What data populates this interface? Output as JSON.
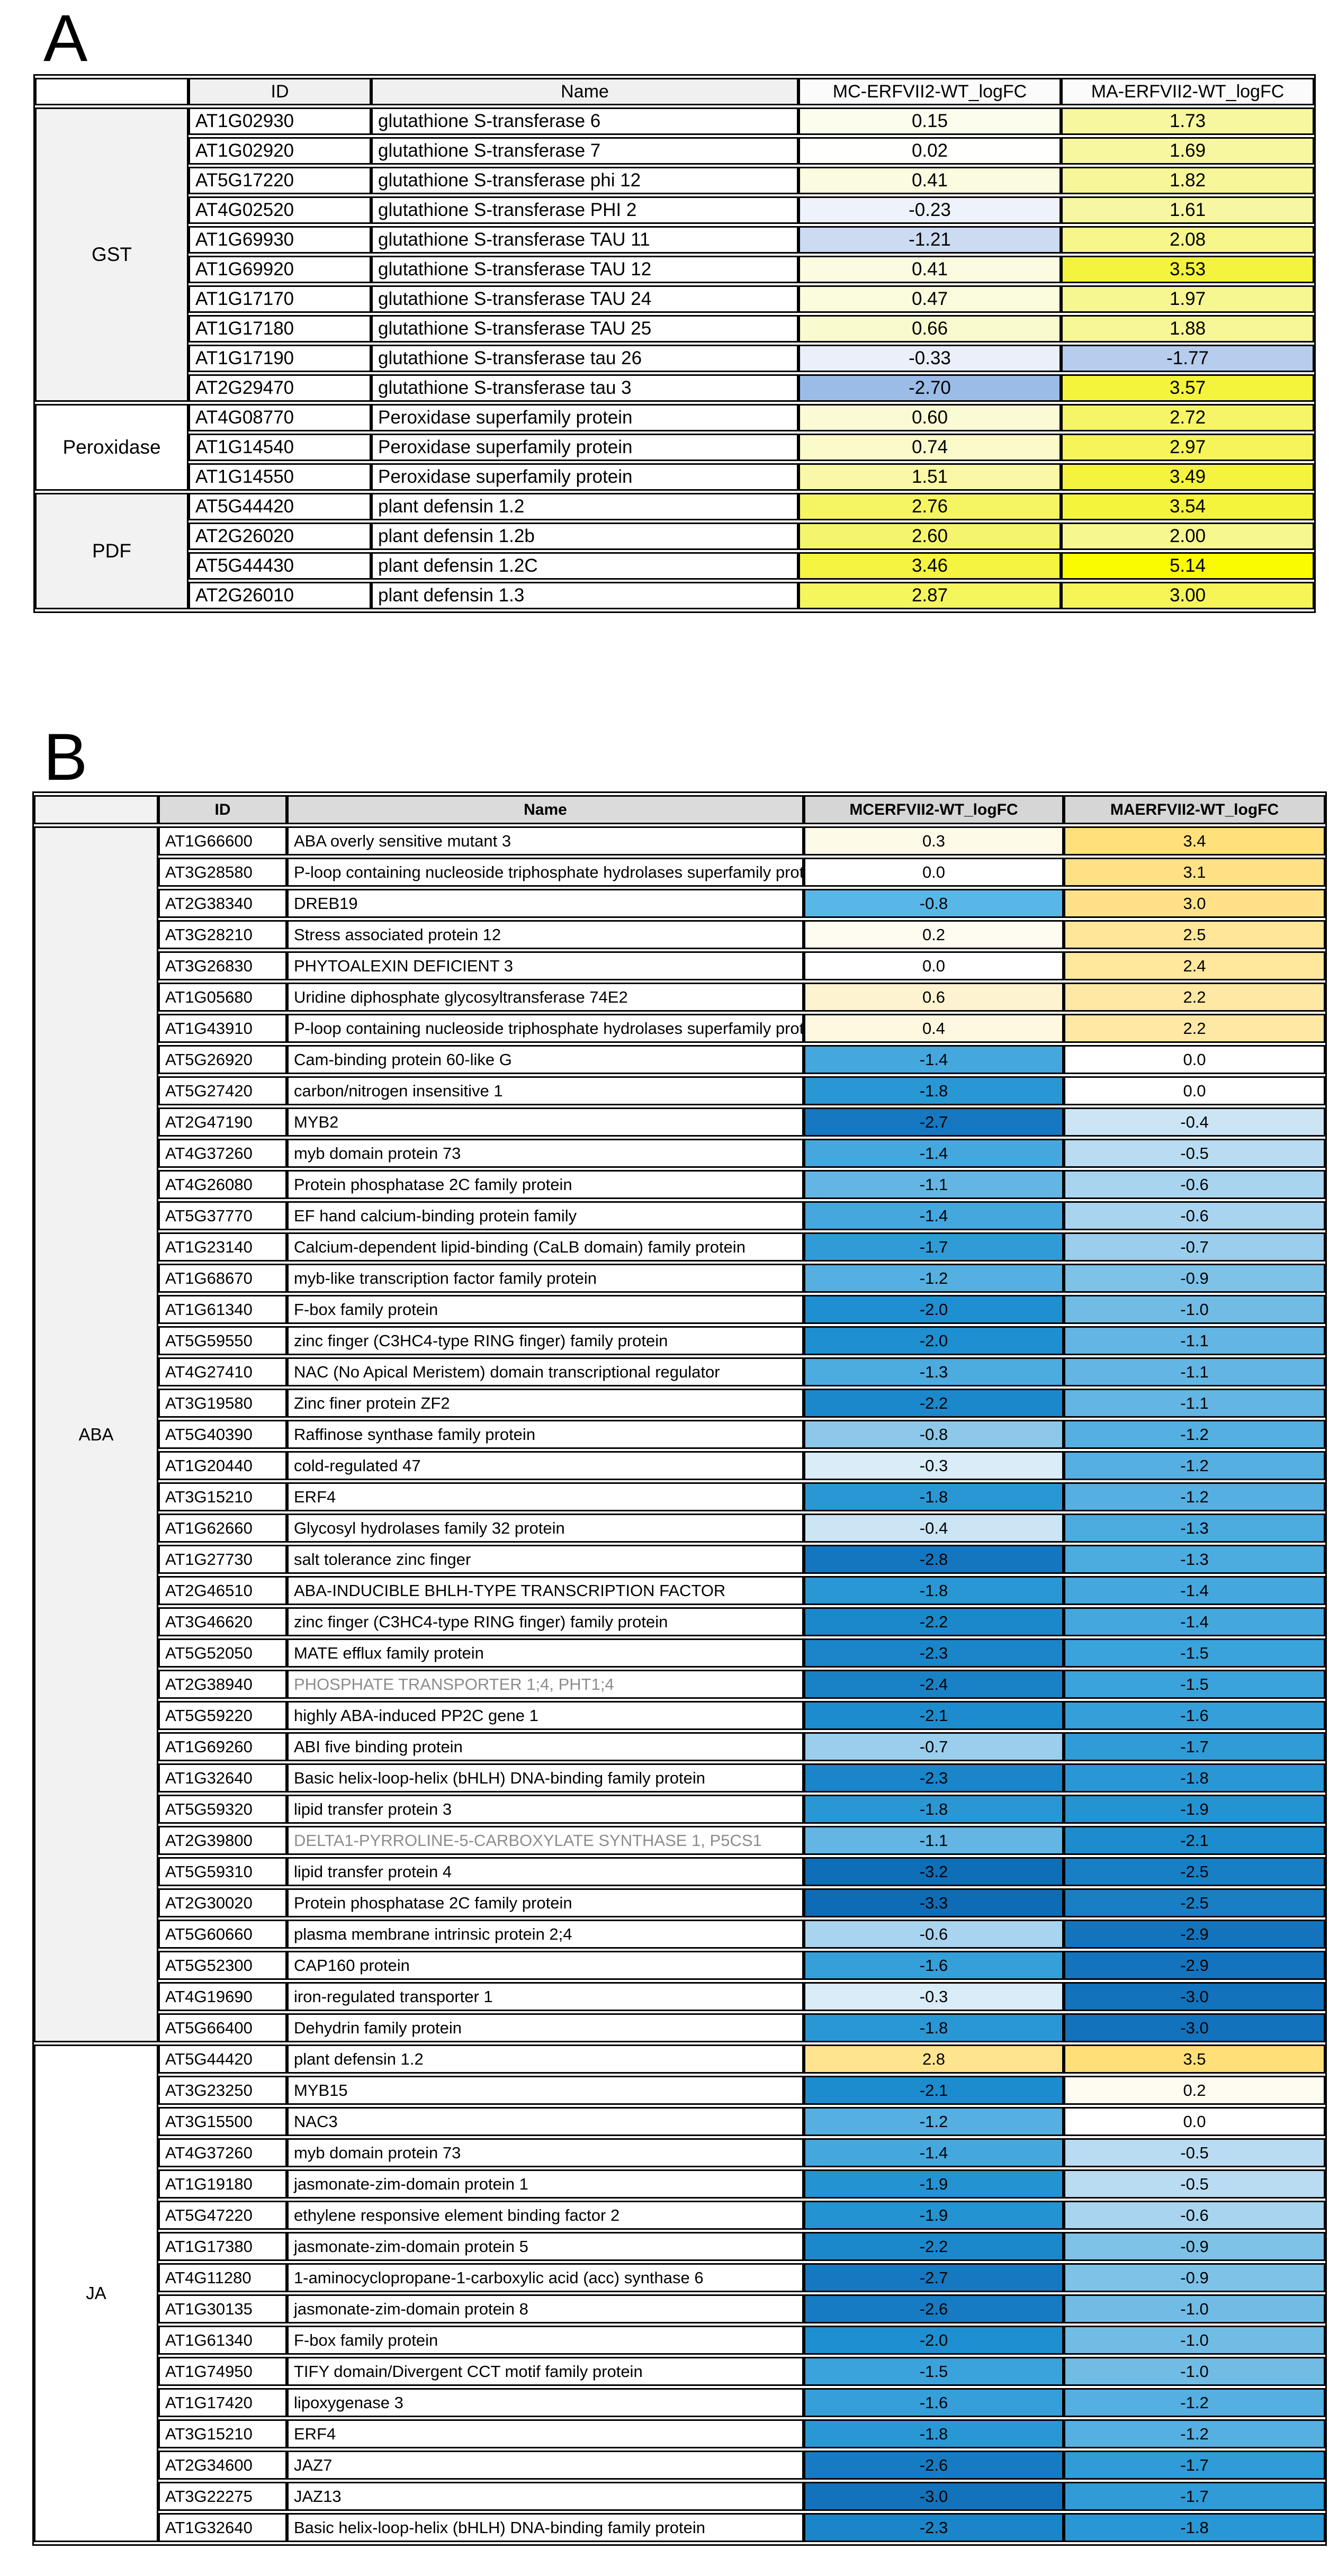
{
  "muted_text_color": "#8C8C8C",
  "panels": [
    {
      "label": "A",
      "columns": {
        "id": "ID",
        "name": "Name",
        "mc": "MC-ERFVII2-WT_logFC",
        "ma": "MA-ERFVII2-WT_logFC"
      },
      "header_colors": {
        "corner": "#FFFFFF",
        "id_name": "#F0F0F0",
        "logfc": "#FBFBFB"
      },
      "scale": {
        "neg": [
          [
            0,
            "#FFFFFF"
          ],
          [
            0.25,
            "#EDF1FA"
          ],
          [
            0.5,
            "#E3EBF8"
          ],
          [
            1.25,
            "#CBD9F2"
          ],
          [
            1.8,
            "#B6CCEE"
          ],
          [
            2.7,
            "#9CBCE8"
          ]
        ],
        "pos": [
          [
            0,
            "#FFFFFF"
          ],
          [
            0.15,
            "#FDFDEE"
          ],
          [
            0.45,
            "#FBFBDE"
          ],
          [
            1.0,
            "#F9F9B8"
          ],
          [
            1.75,
            "#F7F79E"
          ],
          [
            2.8,
            "#F5F562"
          ],
          [
            3.6,
            "#F4F43A"
          ],
          [
            5.14,
            "#FBFB00"
          ]
        ]
      },
      "groups": [
        {
          "label": "GST",
          "bg": "#F2F2F2",
          "rows": [
            {
              "id": "AT1G02930",
              "name": "glutathione S-transferase 6",
              "mc": "0.15",
              "ma": "1.73"
            },
            {
              "id": "AT1G02920",
              "name": "glutathione S-transferase 7",
              "mc": "0.02",
              "ma": "1.69"
            },
            {
              "id": "AT5G17220",
              "name": "glutathione S-transferase phi 12",
              "mc": "0.41",
              "ma": "1.82"
            },
            {
              "id": "AT4G02520",
              "name": "glutathione S-transferase PHI 2",
              "mc": "-0.23",
              "ma": "1.61"
            },
            {
              "id": "AT1G69930",
              "name": "glutathione S-transferase TAU 11",
              "mc": "-1.21",
              "ma": "2.08"
            },
            {
              "id": "AT1G69920",
              "name": "glutathione S-transferase TAU 12",
              "mc": "0.41",
              "ma": "3.53"
            },
            {
              "id": "AT1G17170",
              "name": "glutathione S-transferase TAU 24",
              "mc": "0.47",
              "ma": "1.97"
            },
            {
              "id": "AT1G17180",
              "name": "glutathione S-transferase TAU 25",
              "mc": "0.66",
              "ma": "1.88"
            },
            {
              "id": "AT1G17190",
              "name": "glutathione S-transferase tau 26",
              "mc": "-0.33",
              "ma": "-1.77"
            },
            {
              "id": "AT2G29470",
              "name": "glutathione S-transferase tau 3",
              "mc": "-2.70",
              "ma": "3.57"
            }
          ]
        },
        {
          "label": "Peroxidase",
          "bg": "#FFFFFF",
          "rows": [
            {
              "id": "AT4G08770",
              "name": "Peroxidase superfamily protein",
              "mc": "0.60",
              "ma": "2.72"
            },
            {
              "id": "AT1G14540",
              "name": "Peroxidase superfamily protein",
              "mc": "0.74",
              "ma": "2.97"
            },
            {
              "id": "AT1G14550",
              "name": "Peroxidase superfamily protein",
              "mc": "1.51",
              "ma": "3.49"
            }
          ]
        },
        {
          "label": "PDF",
          "bg": "#F2F2F2",
          "rows": [
            {
              "id": "AT5G44420",
              "name": "plant defensin 1.2",
              "mc": "2.76",
              "ma": "3.54"
            },
            {
              "id": "AT2G26020",
              "name": "plant defensin 1.2b",
              "mc": "2.60",
              "ma": "2.00"
            },
            {
              "id": "AT5G44430",
              "name": "plant defensin 1.2C",
              "mc": "3.46",
              "ma": "5.14"
            },
            {
              "id": "AT2G26010",
              "name": "plant defensin 1.3",
              "mc": "2.87",
              "ma": "3.00"
            }
          ]
        }
      ]
    },
    {
      "label": "B",
      "columns": {
        "id": "ID",
        "name": "Name",
        "mc": "MCERFVII2-WT_logFC",
        "ma": "MAERFVII2-WT_logFC"
      },
      "header_colors": {
        "corner": "#F2F2F2",
        "id_name": "#DBDBDB",
        "logfc": "#D6D6D6"
      },
      "scale": {
        "neg": [
          [
            0,
            "#FFFFFF"
          ],
          [
            0.35,
            "#D3E9F7"
          ],
          [
            0.6,
            "#A9D4EF"
          ],
          [
            0.9,
            "#7FC2E7"
          ],
          [
            1.2,
            "#55AFE1"
          ],
          [
            1.5,
            "#3BA3DC"
          ],
          [
            2.0,
            "#1E8FD0"
          ],
          [
            2.7,
            "#1578C0"
          ],
          [
            3.3,
            "#0E6CB6"
          ]
        ],
        "pos": [
          [
            0,
            "#FFFFFF"
          ],
          [
            0.3,
            "#FEFAE8"
          ],
          [
            0.6,
            "#FEF3D0"
          ],
          [
            1.0,
            "#FFEFC0"
          ],
          [
            2.0,
            "#FFEAAA"
          ],
          [
            2.5,
            "#FFE699"
          ],
          [
            3.0,
            "#FFE288"
          ],
          [
            3.5,
            "#FFDF78"
          ]
        ]
      },
      "groups": [
        {
          "label": "ABA",
          "bg": "#F2F2F2",
          "rows": [
            {
              "id": "AT1G66600",
              "name": "ABA overly sensitive mutant 3",
              "mc": "0.3",
              "ma": "3.4"
            },
            {
              "id": "AT3G28580",
              "name": "P-loop containing nucleoside triphosphate hydrolases superfamily protein",
              "mc": "0.0",
              "ma": "3.1"
            },
            {
              "id": "AT2G38340",
              "name": "DREB19",
              "mc": "-0.8",
              "ma": "3.0",
              "mc_bg": "#59B7E8"
            },
            {
              "id": "AT3G28210",
              "name": "Stress associated protein 12",
              "mc": "0.2",
              "ma": "2.5"
            },
            {
              "id": "AT3G26830",
              "name": "PHYTOALEXIN DEFICIENT 3",
              "mc": "0.0",
              "ma": "2.4"
            },
            {
              "id": "AT1G05680",
              "name": "Uridine diphosphate glycosyltransferase 74E2",
              "mc": "0.6",
              "ma": "2.2"
            },
            {
              "id": "AT1G43910",
              "name": "P-loop containing nucleoside triphosphate hydrolases superfamily protein",
              "mc": "0.4",
              "ma": "2.2"
            },
            {
              "id": "AT5G26920",
              "name": "Cam-binding protein 60-like G",
              "mc": "-1.4",
              "ma": "0.0"
            },
            {
              "id": "AT5G27420",
              "name": "carbon/nitrogen insensitive 1",
              "mc": "-1.8",
              "ma": "0.0"
            },
            {
              "id": "AT2G47190",
              "name": "MYB2",
              "mc": "-2.7",
              "ma": "-0.4"
            },
            {
              "id": "AT4G37260",
              "name": "myb domain protein 73",
              "mc": "-1.4",
              "ma": "-0.5"
            },
            {
              "id": "AT4G26080",
              "name": "Protein phosphatase 2C family protein",
              "mc": "-1.1",
              "ma": "-0.6"
            },
            {
              "id": "AT5G37770",
              "name": "EF hand calcium-binding protein family",
              "mc": "-1.4",
              "ma": "-0.6"
            },
            {
              "id": "AT1G23140",
              "name": "Calcium-dependent lipid-binding (CaLB domain) family protein",
              "mc": "-1.7",
              "ma": "-0.7"
            },
            {
              "id": "AT1G68670",
              "name": "myb-like transcription factor family protein",
              "mc": "-1.2",
              "ma": "-0.9"
            },
            {
              "id": "AT1G61340",
              "name": "F-box family protein",
              "mc": "-2.0",
              "ma": "-1.0"
            },
            {
              "id": "AT5G59550",
              "name": "zinc finger (C3HC4-type RING finger) family protein",
              "mc": "-2.0",
              "ma": "-1.1"
            },
            {
              "id": "AT4G27410",
              "name": "NAC (No Apical Meristem) domain transcriptional regulator",
              "mc": "-1.3",
              "ma": "-1.1"
            },
            {
              "id": "AT3G19580",
              "name": "Zinc finer protein ZF2",
              "mc": "-2.2",
              "ma": "-1.1"
            },
            {
              "id": "AT5G40390",
              "name": "Raffinose synthase family protein",
              "mc": "-0.8",
              "ma": "-1.2"
            },
            {
              "id": "AT1G20440",
              "name": "cold-regulated 47",
              "mc": "-0.3",
              "ma": "-1.2"
            },
            {
              "id": "AT3G15210",
              "name": "ERF4",
              "mc": "-1.8",
              "ma": "-1.2"
            },
            {
              "id": "AT1G62660",
              "name": "Glycosyl hydrolases family 32 protein",
              "mc": "-0.4",
              "ma": "-1.3"
            },
            {
              "id": "AT1G27730",
              "name": "salt tolerance zinc finger",
              "mc": "-2.8",
              "ma": "-1.3"
            },
            {
              "id": "AT2G46510",
              "name": "ABA-INDUCIBLE BHLH-TYPE TRANSCRIPTION FACTOR",
              "mc": "-1.8",
              "ma": "-1.4"
            },
            {
              "id": "AT3G46620",
              "name": "zinc finger (C3HC4-type RING finger) family protein",
              "mc": "-2.2",
              "ma": "-1.4"
            },
            {
              "id": "AT5G52050",
              "name": "MATE efflux family protein",
              "mc": "-2.3",
              "ma": "-1.5"
            },
            {
              "id": "AT2G38940",
              "name": "PHOSPHATE TRANSPORTER 1;4, PHT1;4",
              "mc": "-2.4",
              "ma": "-1.5",
              "muted": true
            },
            {
              "id": "AT5G59220",
              "name": "highly ABA-induced PP2C gene 1",
              "mc": "-2.1",
              "ma": "-1.6"
            },
            {
              "id": "AT1G69260",
              "name": "ABI five binding protein",
              "mc": "-0.7",
              "ma": "-1.7"
            },
            {
              "id": "AT1G32640",
              "name": "Basic helix-loop-helix (bHLH) DNA-binding family protein",
              "mc": "-2.3",
              "ma": "-1.8"
            },
            {
              "id": "AT5G59320",
              "name": "lipid transfer protein 3",
              "mc": "-1.8",
              "ma": "-1.9"
            },
            {
              "id": "AT2G39800",
              "name": "DELTA1-PYRROLINE-5-CARBOXYLATE SYNTHASE 1, P5CS1",
              "mc": "-1.1",
              "ma": "-2.1",
              "muted": true
            },
            {
              "id": "AT5G59310",
              "name": "lipid transfer protein 4",
              "mc": "-3.2",
              "ma": "-2.5"
            },
            {
              "id": "AT2G30020",
              "name": "Protein phosphatase 2C family protein",
              "mc": "-3.3",
              "ma": "-2.5"
            },
            {
              "id": "AT5G60660",
              "name": "plasma membrane intrinsic protein 2;4",
              "mc": "-0.6",
              "ma": "-2.9"
            },
            {
              "id": "AT5G52300",
              "name": "CAP160 protein",
              "mc": "-1.6",
              "ma": "-2.9"
            },
            {
              "id": "AT4G19690",
              "name": "iron-regulated transporter 1",
              "mc": "-0.3",
              "ma": "-3.0"
            },
            {
              "id": "AT5G66400",
              "name": "Dehydrin family protein",
              "mc": "-1.8",
              "ma": "-3.0"
            }
          ]
        },
        {
          "label": "JA",
          "bg": "#FFFFFF",
          "rows": [
            {
              "id": "AT5G44420",
              "name": "plant defensin 1.2",
              "mc": "2.8",
              "ma": "3.5"
            },
            {
              "id": "AT3G23250",
              "name": "MYB15",
              "mc": "-2.1",
              "ma": "0.2"
            },
            {
              "id": "AT3G15500",
              "name": "NAC3",
              "mc": "-1.2",
              "ma": "0.0"
            },
            {
              "id": "AT4G37260",
              "name": "myb domain protein 73",
              "mc": "-1.4",
              "ma": "-0.5"
            },
            {
              "id": "AT1G19180",
              "name": "jasmonate-zim-domain protein 1",
              "mc": "-1.9",
              "ma": "-0.5"
            },
            {
              "id": "AT5G47220",
              "name": "ethylene responsive element binding factor 2",
              "mc": "-1.9",
              "ma": "-0.6"
            },
            {
              "id": "AT1G17380",
              "name": "jasmonate-zim-domain protein 5",
              "mc": "-2.2",
              "ma": "-0.9"
            },
            {
              "id": "AT4G11280",
              "name": "1-aminocyclopropane-1-carboxylic acid (acc) synthase 6",
              "mc": "-2.7",
              "ma": "-0.9"
            },
            {
              "id": "AT1G30135",
              "name": "jasmonate-zim-domain protein 8",
              "mc": "-2.6",
              "ma": "-1.0"
            },
            {
              "id": "AT1G61340",
              "name": "F-box family protein",
              "mc": "-2.0",
              "ma": "-1.0"
            },
            {
              "id": "AT1G74950",
              "name": "TIFY domain/Divergent CCT motif family protein",
              "mc": "-1.5",
              "ma": "-1.0"
            },
            {
              "id": "AT1G17420",
              "name": "lipoxygenase 3",
              "mc": "-1.6",
              "ma": "-1.2"
            },
            {
              "id": "AT3G15210",
              "name": "ERF4",
              "mc": "-1.8",
              "ma": "-1.2"
            },
            {
              "id": "AT2G34600",
              "name": "JAZ7",
              "mc": "-2.6",
              "ma": "-1.7"
            },
            {
              "id": "AT3G22275",
              "name": "JAZ13",
              "mc": "-3.0",
              "ma": "-1.7"
            },
            {
              "id": "AT1G32640",
              "name": "Basic helix-loop-helix (bHLH) DNA-binding family protein",
              "mc": "-2.3",
              "ma": "-1.8"
            }
          ]
        }
      ]
    }
  ]
}
